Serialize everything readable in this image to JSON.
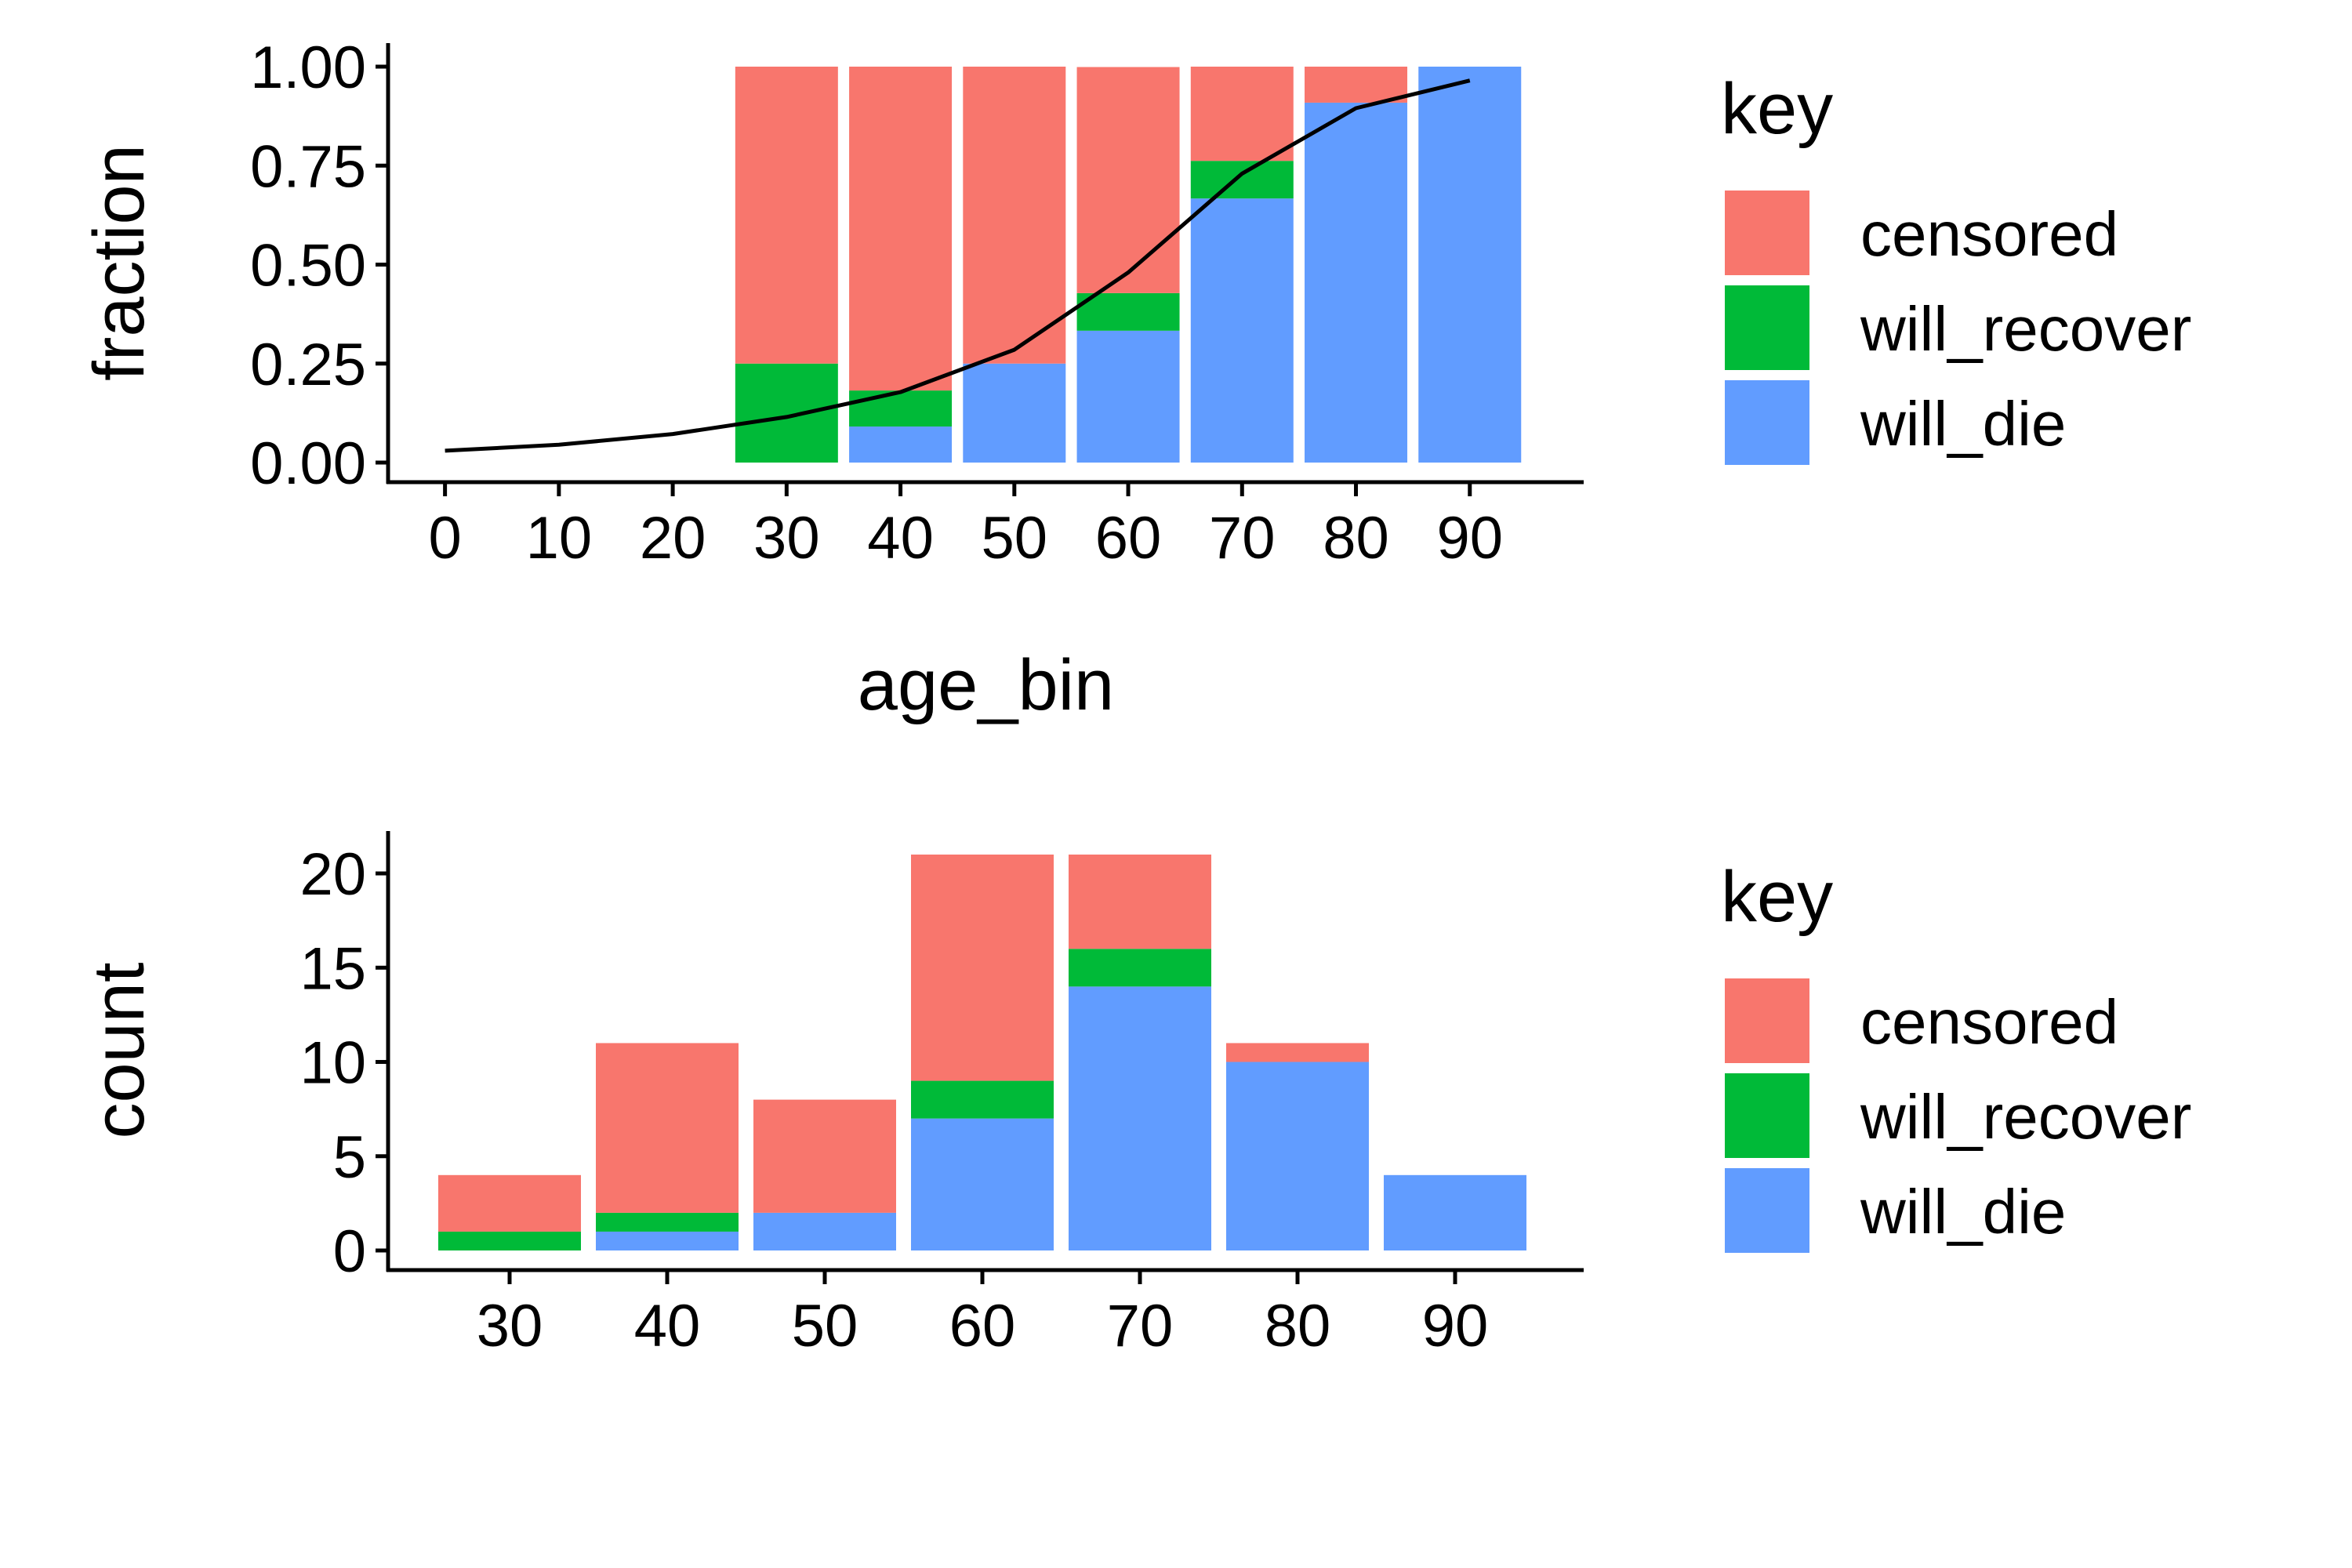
{
  "colors": {
    "censored": "#F8766D",
    "will_recover": "#00BA38",
    "will_die": "#619CFF",
    "line": "#000000",
    "axis": "#000000"
  },
  "chart_data": [
    {
      "type": "bar",
      "stacked": true,
      "x": [
        30,
        40,
        50,
        60,
        70,
        80,
        90
      ],
      "series": [
        {
          "name": "will_die",
          "values": [
            0,
            0.091,
            0.25,
            0.333,
            0.667,
            0.909,
            1.0
          ]
        },
        {
          "name": "will_recover",
          "values": [
            0.25,
            0.091,
            0,
            0.095,
            0.095,
            0,
            0
          ]
        },
        {
          "name": "censored",
          "values": [
            0.75,
            0.818,
            0.75,
            0.571,
            0.238,
            0.091,
            0
          ]
        }
      ],
      "line": {
        "x": [
          0,
          10,
          20,
          30,
          40,
          50,
          60,
          70,
          80,
          90
        ],
        "y": [
          0.03,
          0.045,
          0.072,
          0.115,
          0.178,
          0.285,
          0.48,
          0.73,
          0.895,
          0.965
        ]
      },
      "xlabel": "age_bin",
      "ylabel": "fraction",
      "xlim": [
        -5,
        100
      ],
      "ylim": [
        0,
        1
      ],
      "xticks": [
        "0",
        "10",
        "20",
        "30",
        "40",
        "50",
        "60",
        "70",
        "80",
        "90"
      ],
      "yticks": [
        "0.00",
        "0.25",
        "0.50",
        "0.75",
        "1.00"
      ],
      "legend": {
        "title": "key",
        "entries": [
          "censored",
          "will_recover",
          "will_die"
        ],
        "placement": "right"
      }
    },
    {
      "type": "bar",
      "stacked": true,
      "categories": [
        "30",
        "40",
        "50",
        "60",
        "70",
        "80",
        "90"
      ],
      "series": [
        {
          "name": "will_die",
          "values": [
            0,
            1,
            2,
            7,
            14,
            10,
            4
          ]
        },
        {
          "name": "will_recover",
          "values": [
            1,
            1,
            0,
            2,
            2,
            0,
            0
          ]
        },
        {
          "name": "censored",
          "values": [
            3,
            9,
            6,
            12,
            5,
            1,
            0
          ]
        }
      ],
      "xlabel": "",
      "ylabel": "count",
      "ylim": [
        0,
        21
      ],
      "yticks": [
        "0",
        "5",
        "10",
        "15",
        "20"
      ],
      "legend": {
        "title": "key",
        "entries": [
          "censored",
          "will_recover",
          "will_die"
        ],
        "placement": "right"
      }
    }
  ]
}
